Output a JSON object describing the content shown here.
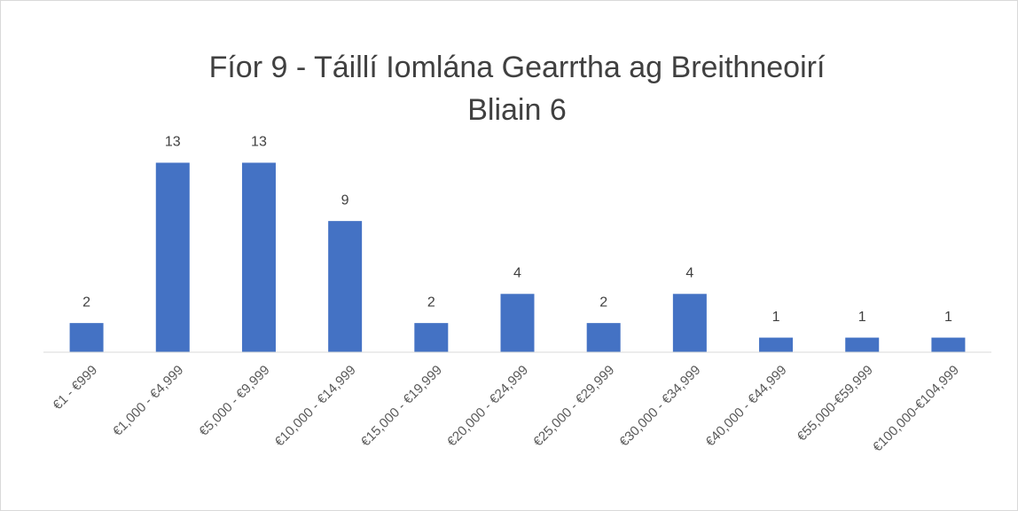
{
  "chart_data": {
    "type": "bar",
    "title": [
      "Fíor 9 - Táillí Iomlána Gearrtha ag Breithneoirí",
      "Bliain 6"
    ],
    "categories": [
      "€1 - €999",
      "€1,000 - €4,999",
      "€5,000 - €9,999",
      "€10,000 - €14,999",
      "€15,000 - €19,999",
      "€20,000 - €24,999",
      "€25,000 - €29,999",
      "€30,000 - €34,999",
      "€40,000 - €44,999",
      "€55,000-€59,999",
      "€100,000-€104,999"
    ],
    "values": [
      2,
      13,
      13,
      9,
      2,
      4,
      2,
      4,
      1,
      1,
      1
    ],
    "color": "#4472c4",
    "ylim": [
      0,
      14
    ]
  }
}
